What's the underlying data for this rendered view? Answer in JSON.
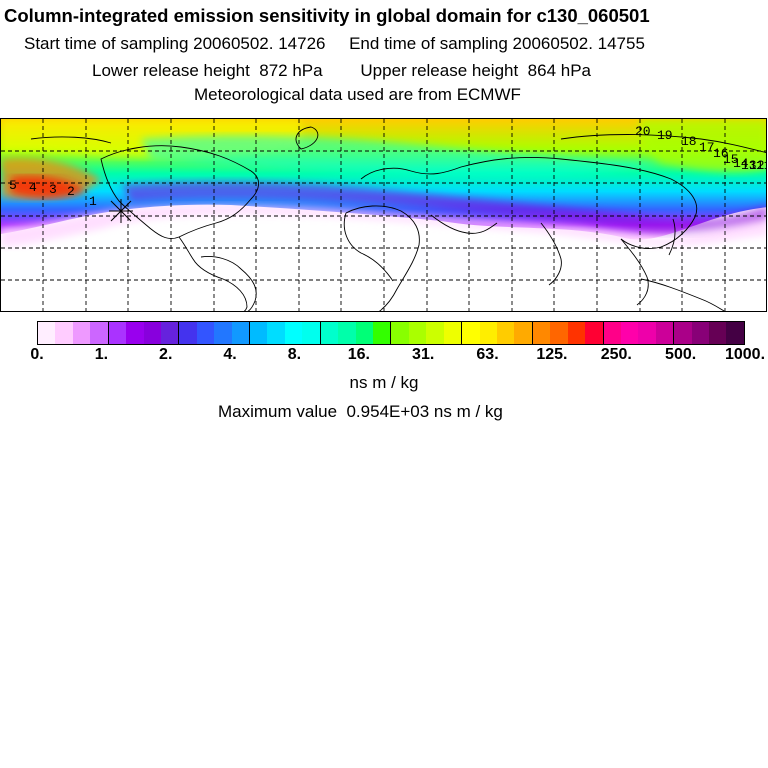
{
  "header": {
    "title": "Column-integrated emission sensitivity in global domain for c130_060501",
    "sampling": "Start time of sampling 20060502. 14726     End time of sampling 20060502. 14755",
    "release_height": "Lower release height  872 hPa        Upper release height  864 hPa",
    "met_data": "Meteorological data used are from ECMWF"
  },
  "map": {
    "plume_labels": [
      "20",
      "19",
      "18",
      "17",
      "16",
      "15",
      "14",
      "13",
      "12",
      "11"
    ],
    "source_label": "1",
    "west_labels": [
      "5",
      "4",
      "3",
      "2"
    ]
  },
  "colorbar": {
    "colors": [
      "#ffeeff",
      "#ffccff",
      "#ee99ff",
      "#cc66ff",
      "#aa33ff",
      "#9900ee",
      "#8800dd",
      "#6622dd",
      "#4433ee",
      "#3355ff",
      "#2277ff",
      "#1199ff",
      "#00bbff",
      "#00ddff",
      "#00ffff",
      "#00ffee",
      "#00ffcc",
      "#00ffaa",
      "#00ff77",
      "#33ff00",
      "#88ff00",
      "#aaff00",
      "#ccff00",
      "#eeff00",
      "#ffff00",
      "#ffee00",
      "#ffcc00",
      "#ffaa00",
      "#ff8800",
      "#ff6600",
      "#ff3300",
      "#ff0033",
      "#ff0088",
      "#ff00aa",
      "#ee00aa",
      "#cc0099",
      "#aa0088",
      "#880077",
      "#660055",
      "#440044"
    ],
    "tick_labels": [
      "0.",
      "1.",
      "2.",
      "4.",
      "8.",
      "16.",
      "31.",
      "63.",
      "125.",
      "250.",
      "500.",
      "1000."
    ],
    "units": "ns m / kg"
  },
  "max_value_text": "Maximum value  0.954E+03 ns m / kg"
}
